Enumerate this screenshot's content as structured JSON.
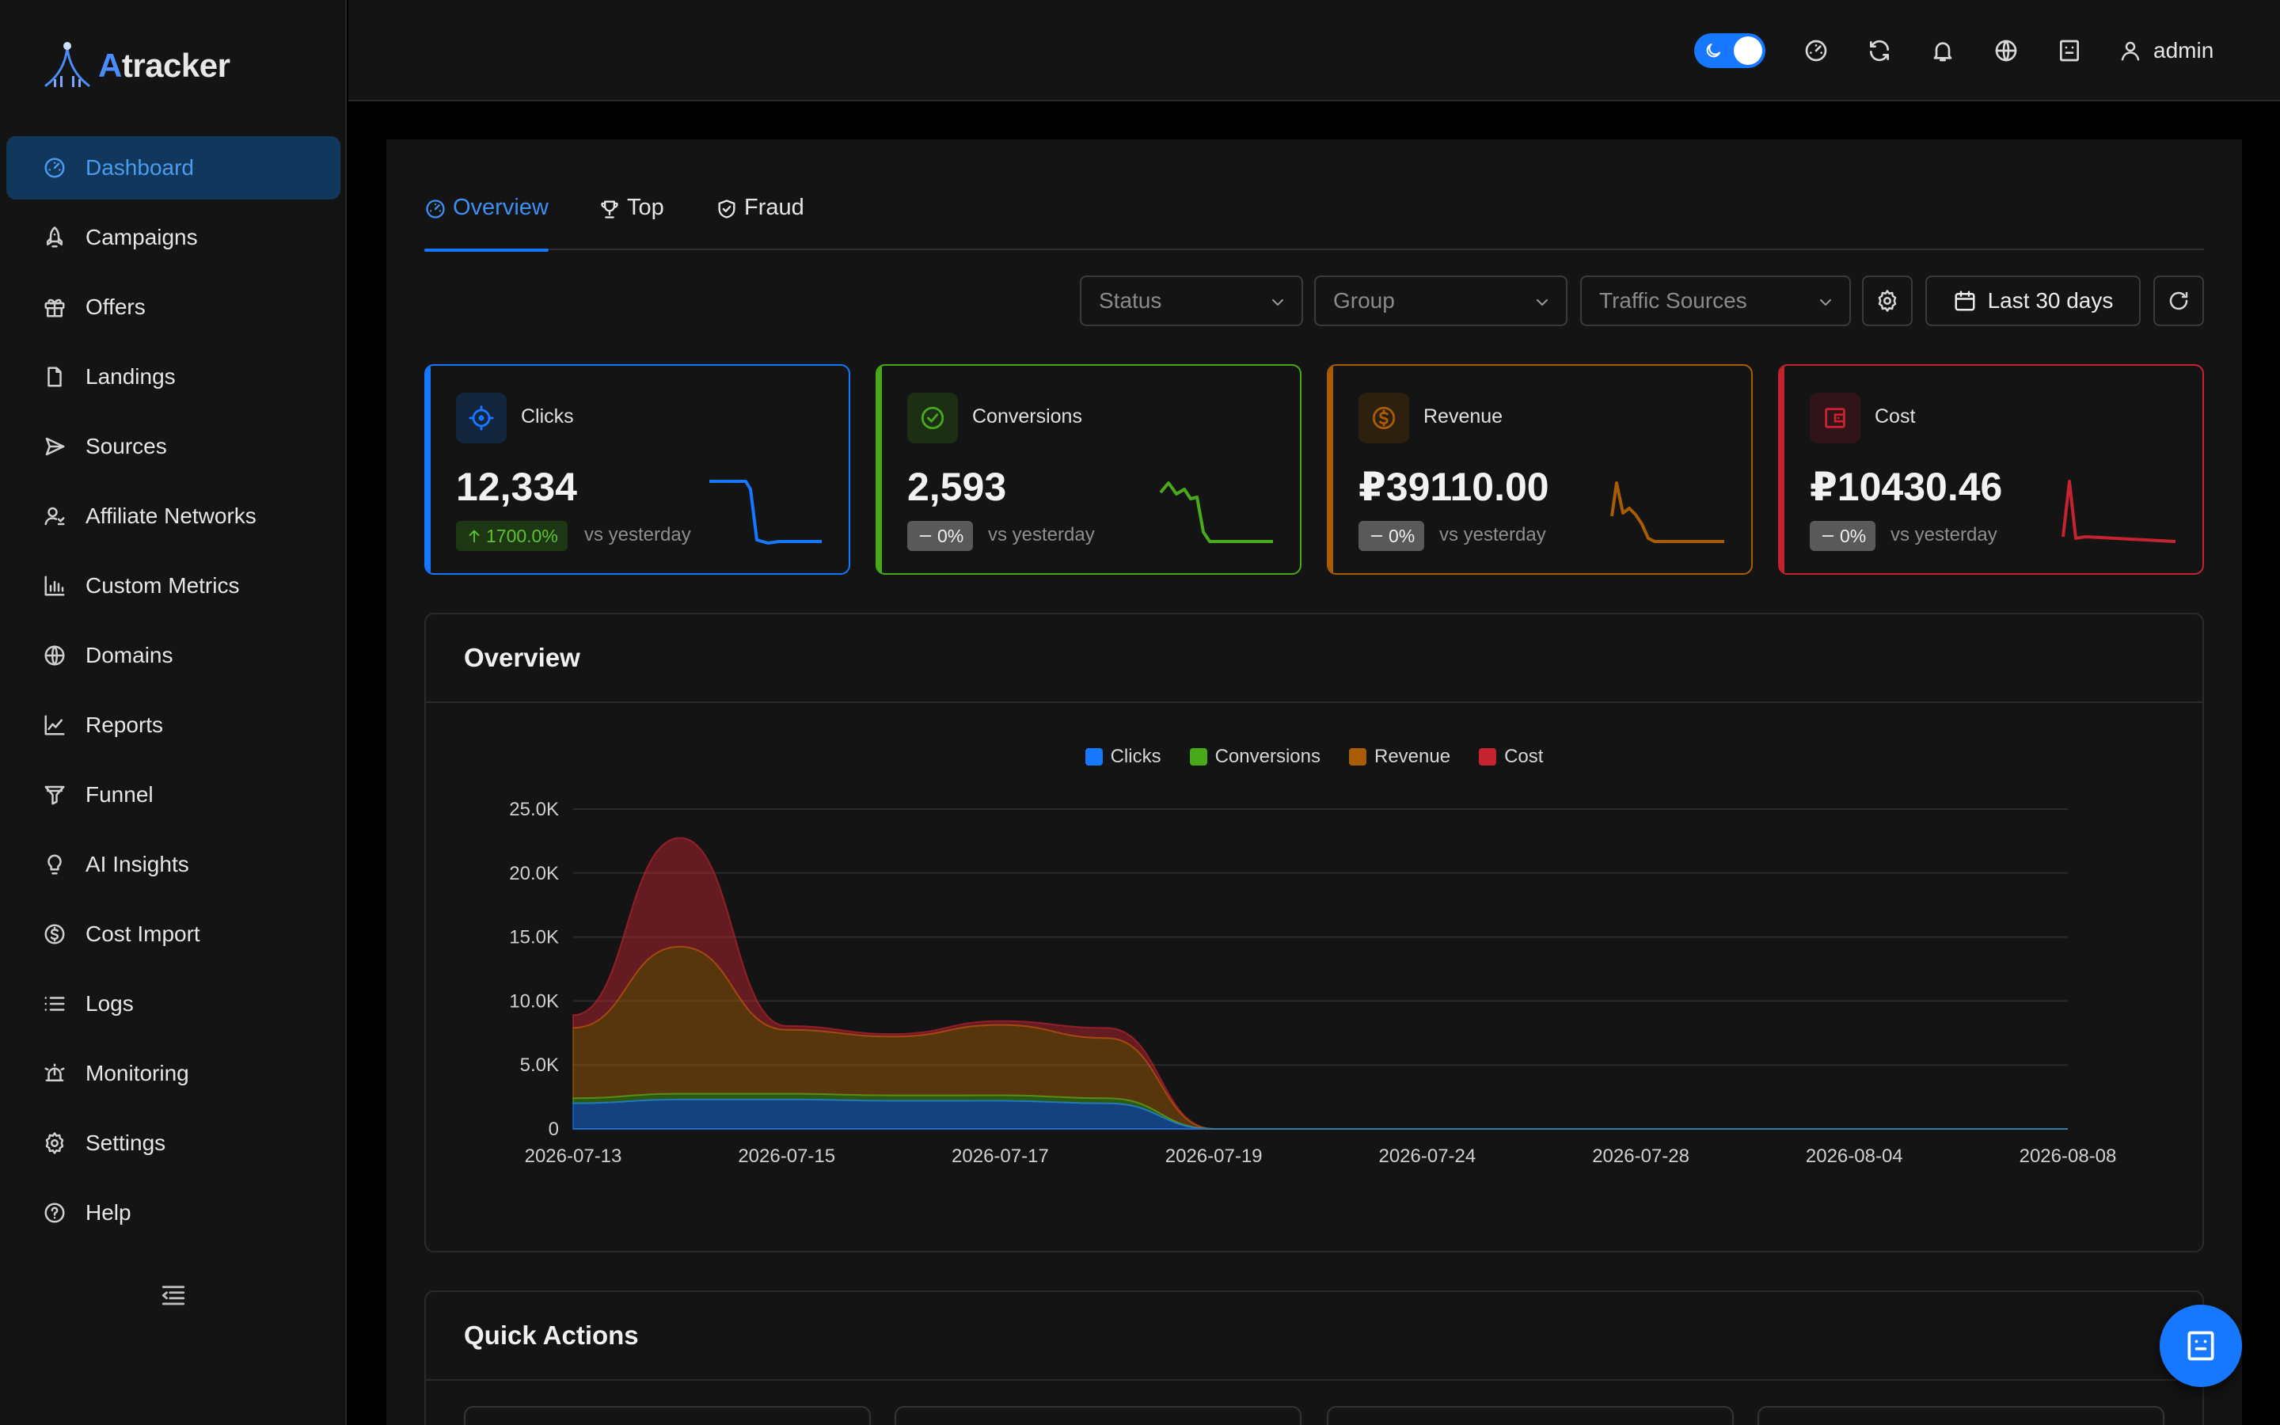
{
  "brand": {
    "prefix": "A",
    "rest": "tracker"
  },
  "sidebar": {
    "items": [
      {
        "label": "Dashboard",
        "icon": "dashboard-gauge-icon",
        "active": true
      },
      {
        "label": "Campaigns",
        "icon": "rocket-icon"
      },
      {
        "label": "Offers",
        "icon": "gift-icon"
      },
      {
        "label": "Landings",
        "icon": "file-icon"
      },
      {
        "label": "Sources",
        "icon": "send-icon"
      },
      {
        "label": "Affiliate Networks",
        "icon": "user-network-icon"
      },
      {
        "label": "Custom Metrics",
        "icon": "bar-chart-icon"
      },
      {
        "label": "Domains",
        "icon": "globe-icon"
      },
      {
        "label": "Reports",
        "icon": "line-chart-icon"
      },
      {
        "label": "Funnel",
        "icon": "funnel-icon"
      },
      {
        "label": "AI Insights",
        "icon": "bulb-icon"
      },
      {
        "label": "Cost Import",
        "icon": "dollar-icon"
      },
      {
        "label": "Logs",
        "icon": "list-icon"
      },
      {
        "label": "Monitoring",
        "icon": "alarm-icon"
      },
      {
        "label": "Settings",
        "icon": "gear-icon"
      },
      {
        "label": "Help",
        "icon": "question-icon"
      }
    ]
  },
  "header": {
    "user": "admin"
  },
  "tabs": [
    {
      "label": "Overview",
      "icon": "dashboard-gauge-icon",
      "active": true
    },
    {
      "label": "Top",
      "icon": "trophy-icon"
    },
    {
      "label": "Fraud",
      "icon": "shield-check-icon"
    }
  ],
  "filters": {
    "status": "Status",
    "group": "Group",
    "traffic_sources": "Traffic Sources",
    "date_range": "Last 30 days"
  },
  "cards": [
    {
      "label": "Clicks",
      "value": "12,334",
      "change": "1700.0%",
      "vs": "vs yesterday",
      "color": "#1677ff"
    },
    {
      "label": "Conversions",
      "value": "2,593",
      "change": "0%",
      "vs": "vs yesterday",
      "color": "#49aa19"
    },
    {
      "label": "Revenue",
      "value": "₽39110.00",
      "change": "0%",
      "vs": "vs yesterday",
      "color": "#a85d05"
    },
    {
      "label": "Cost",
      "value": "₽10430.46",
      "change": "0%",
      "vs": "vs yesterday",
      "color": "#c52330"
    }
  ],
  "overview": {
    "title": "Overview"
  },
  "quick_actions": {
    "title": "Quick Actions"
  },
  "chart_data": {
    "type": "area",
    "stacked": true,
    "legend_position": "top-center",
    "grid": true,
    "ylim": [
      0,
      25000
    ],
    "y_ticks": [
      "0",
      "5.0K",
      "10.0K",
      "15.0K",
      "20.0K",
      "25.0K"
    ],
    "x": [
      "2026-07-13",
      "2026-07-14",
      "2026-07-15",
      "2026-07-16",
      "2026-07-17",
      "2026-07-18",
      "2026-07-19",
      "2026-07-24",
      "2026-07-28",
      "2026-08-04",
      "2026-08-08"
    ],
    "x_ticks": [
      "2026-07-13",
      "2026-07-15",
      "2026-07-17",
      "2026-07-19",
      "2026-07-24",
      "2026-07-28",
      "2026-08-04",
      "2026-08-08"
    ],
    "series": [
      {
        "name": "Clicks",
        "color": "#1677ff",
        "values": [
          2000,
          2300,
          2300,
          2200,
          2200,
          2000,
          0,
          0,
          0,
          0,
          0
        ]
      },
      {
        "name": "Conversions",
        "color": "#49aa19",
        "values": [
          400,
          450,
          450,
          420,
          430,
          400,
          0,
          0,
          0,
          0,
          0
        ]
      },
      {
        "name": "Revenue",
        "color": "#a85d05",
        "values": [
          5500,
          11500,
          5000,
          4600,
          5500,
          4700,
          0,
          0,
          0,
          0,
          0
        ]
      },
      {
        "name": "Cost",
        "color": "#c52330",
        "values": [
          1000,
          8500,
          300,
          200,
          300,
          800,
          0,
          0,
          0,
          0,
          0
        ]
      }
    ]
  }
}
